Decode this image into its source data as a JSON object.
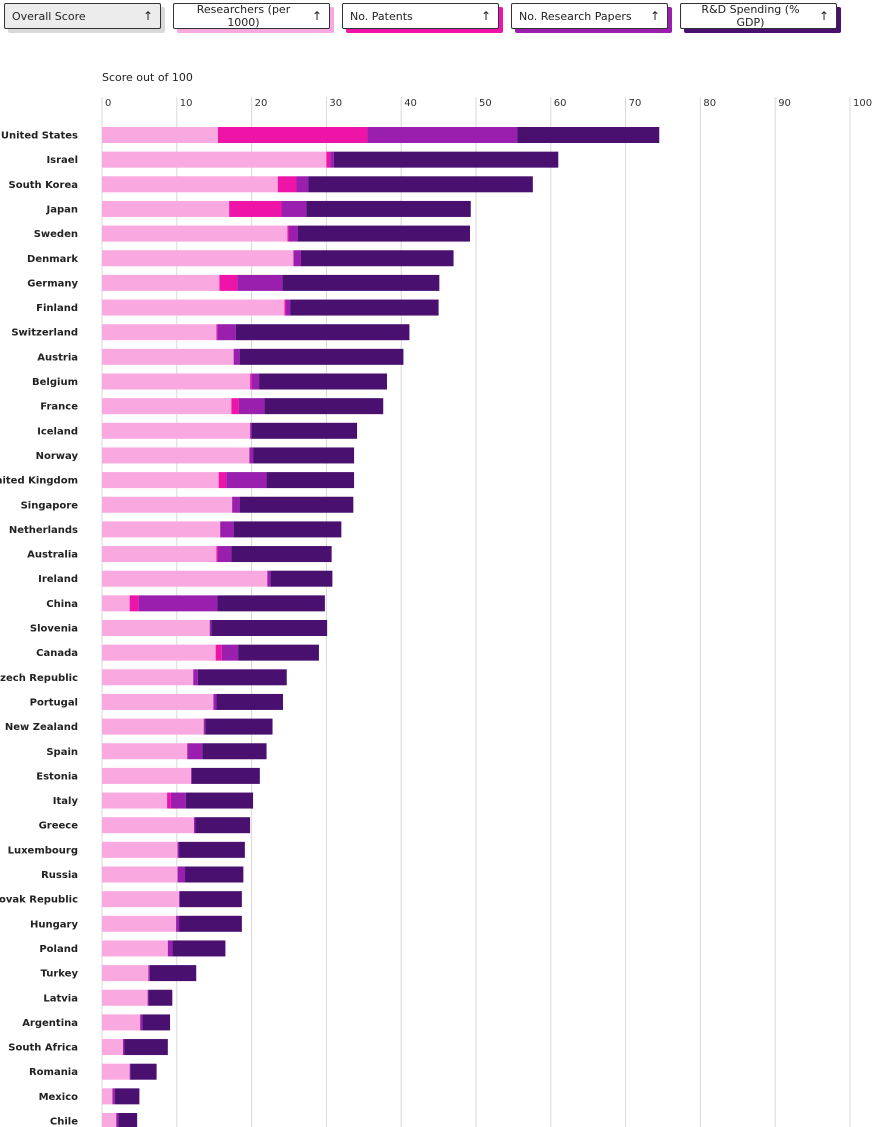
{
  "buttons": [
    {
      "label": "Overall Score",
      "arrow": "↑",
      "color": "#d9d9d9",
      "active": true
    },
    {
      "label": "Researchers (per 1000)",
      "arrow": "↑",
      "color": "#f9a8e0",
      "active": false
    },
    {
      "label": "No. Patents",
      "arrow": "↑",
      "color": "#ee14a8",
      "active": false
    },
    {
      "label": "No. Research Papers",
      "arrow": "↑",
      "color": "#9b1fae",
      "active": false
    },
    {
      "label": "R&D Spending (% GDP)",
      "arrow": "↑",
      "color": "#4a1070",
      "active": false
    }
  ],
  "subtitle": "Score out of 100",
  "chart_data": {
    "type": "bar",
    "orientation": "horizontal",
    "stacked": true,
    "xlim": [
      0,
      100
    ],
    "xticks": [
      0,
      10,
      20,
      30,
      40,
      50,
      60,
      70,
      80,
      90,
      100
    ],
    "grid": true,
    "categories": [
      "United States",
      "Israel",
      "South Korea",
      "Japan",
      "Sweden",
      "Denmark",
      "Germany",
      "Finland",
      "Switzerland",
      "Austria",
      "Belgium",
      "France",
      "Iceland",
      "Norway",
      "United Kingdom",
      "Singapore",
      "Netherlands",
      "Australia",
      "Ireland",
      "China",
      "Slovenia",
      "Canada",
      "Czech Republic",
      "Portugal",
      "New Zealand",
      "Spain",
      "Estonia",
      "Italy",
      "Greece",
      "Luxembourg",
      "Russia",
      "Slovak Republic",
      "Hungary",
      "Poland",
      "Turkey",
      "Latvia",
      "Argentina",
      "South Africa",
      "Romania",
      "Mexico",
      "Chile"
    ],
    "series": [
      {
        "name": "Researchers (per 1000)",
        "color": "#f9a8e0",
        "values": [
          15.5,
          30,
          23.5,
          17,
          24.8,
          25.6,
          15.7,
          24.4,
          15.3,
          17.6,
          19.8,
          17.3,
          19.8,
          19.7,
          15.6,
          17.4,
          15.8,
          15.3,
          22.1,
          3.7,
          14.4,
          15.2,
          12.2,
          14.9,
          13.6,
          11.4,
          11.9,
          8.7,
          12.3,
          10.1,
          10.1,
          10.3,
          9.9,
          8.8,
          6.2,
          6.1,
          5.1,
          2.8,
          3.7,
          1.4,
          1.9
        ]
      },
      {
        "name": "No. Patents",
        "color": "#ee14a8",
        "values": [
          20,
          0.5,
          2.5,
          7,
          0.2,
          0,
          2.4,
          0.2,
          0.1,
          0,
          0.2,
          1,
          0,
          0,
          1,
          0,
          0,
          0.2,
          0,
          1.2,
          0,
          0.8,
          0,
          0,
          0,
          0,
          0,
          0.5,
          0,
          0,
          0,
          0,
          0,
          0,
          0,
          0,
          0,
          0,
          0,
          0,
          0
        ]
      },
      {
        "name": "No. Research Papers",
        "color": "#9b1fae",
        "values": [
          20,
          0.5,
          1.6,
          3.3,
          1.2,
          1,
          6,
          0.6,
          2.5,
          0.8,
          1,
          3.4,
          0.2,
          0.5,
          5.4,
          1,
          1.8,
          1.8,
          0.4,
          10.5,
          0.2,
          2.2,
          0.6,
          0.4,
          0.2,
          2,
          0.1,
          2,
          0.2,
          0.2,
          1,
          0.1,
          0.4,
          0.6,
          0.2,
          0.1,
          0.3,
          0.2,
          0.1,
          0.3,
          0.3
        ]
      },
      {
        "name": "R&D Spending (% GDP)",
        "color": "#4a1070",
        "values": [
          19,
          30,
          30,
          22,
          23,
          20.4,
          21,
          19.8,
          23.2,
          21.9,
          17.1,
          15.9,
          14.1,
          13.5,
          11.7,
          15.2,
          14.4,
          13.4,
          8.3,
          14.4,
          15.5,
          10.8,
          11.9,
          8.9,
          9.0,
          8.6,
          9.1,
          9.0,
          7.3,
          8.8,
          7.8,
          8.3,
          8.4,
          7.1,
          6.2,
          3.2,
          3.7,
          5.8,
          3.5,
          3.3,
          2.5
        ]
      }
    ]
  }
}
